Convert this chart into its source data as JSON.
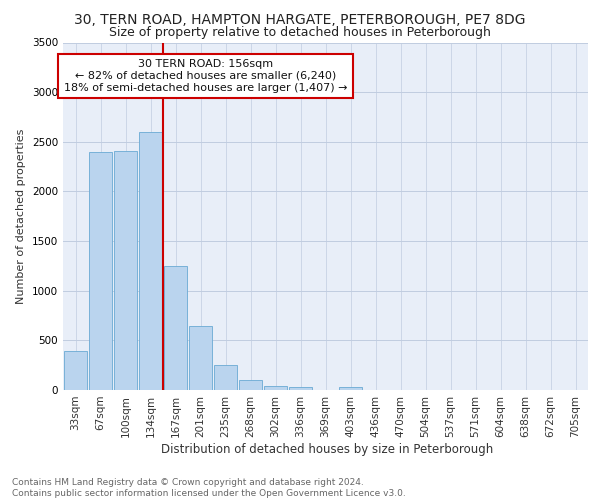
{
  "title1": "30, TERN ROAD, HAMPTON HARGATE, PETERBOROUGH, PE7 8DG",
  "title2": "Size of property relative to detached houses in Peterborough",
  "xlabel": "Distribution of detached houses by size in Peterborough",
  "ylabel": "Number of detached properties",
  "categories": [
    "33sqm",
    "67sqm",
    "100sqm",
    "134sqm",
    "167sqm",
    "201sqm",
    "235sqm",
    "268sqm",
    "302sqm",
    "336sqm",
    "369sqm",
    "403sqm",
    "436sqm",
    "470sqm",
    "504sqm",
    "537sqm",
    "571sqm",
    "604sqm",
    "638sqm",
    "672sqm",
    "705sqm"
  ],
  "values": [
    390,
    2400,
    2410,
    2600,
    1250,
    640,
    255,
    105,
    45,
    30,
    5,
    35,
    0,
    0,
    0,
    0,
    0,
    0,
    0,
    0,
    0
  ],
  "bar_color": "#bad4ee",
  "bar_edge_color": "#6aaad4",
  "vline_color": "#cc0000",
  "annotation_text": "30 TERN ROAD: 156sqm\n← 82% of detached houses are smaller (6,240)\n18% of semi-detached houses are larger (1,407) →",
  "annotation_box_color": "#ffffff",
  "annotation_box_edge": "#cc0000",
  "ylim": [
    0,
    3500
  ],
  "yticks": [
    0,
    500,
    1000,
    1500,
    2000,
    2500,
    3000,
    3500
  ],
  "background_color": "#e8eef8",
  "footer_text": "Contains HM Land Registry data © Crown copyright and database right 2024.\nContains public sector information licensed under the Open Government Licence v3.0.",
  "title1_fontsize": 10,
  "title2_fontsize": 9,
  "xlabel_fontsize": 8.5,
  "ylabel_fontsize": 8,
  "tick_fontsize": 7.5,
  "annot_fontsize": 8
}
